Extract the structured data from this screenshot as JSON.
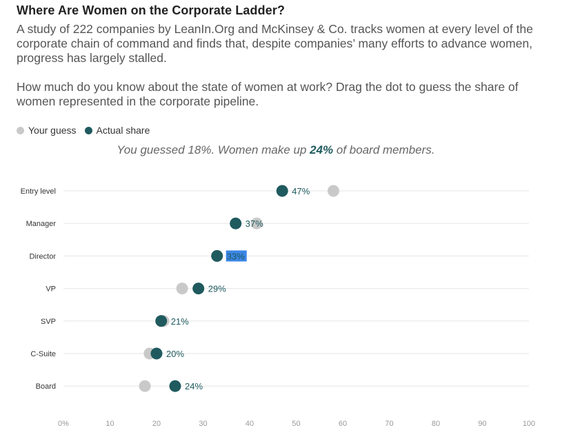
{
  "header": {
    "title": "Where Are Women on the Corporate Ladder?",
    "paragraph_1": "A study of 222 companies by LeanIn.Org and McKinsey & Co. tracks women at every level of the corporate chain of command and finds that, despite companies’ many efforts to advance women, progress has largely stalled.",
    "paragraph_2": "How much do you know about the state of women at work? Drag the dot to guess the share of women represented in the corporate pipeline."
  },
  "legend": {
    "guess_label": "Your guess",
    "actual_label": "Actual share"
  },
  "result": {
    "prefix": "You guessed 18%. Women make up ",
    "highlight": "24%",
    "suffix": " of board members."
  },
  "colors": {
    "actual": "#1f5a5e",
    "guess": "#c9c9c9",
    "gridline": "#e6e6e6",
    "tick_text": "#999999"
  },
  "chart_data": {
    "type": "scatter",
    "categories": [
      "Entry level",
      "Manager",
      "Director",
      "VP",
      "SVP",
      "C-Suite",
      "Board"
    ],
    "series": [
      {
        "name": "Your guess",
        "values": [
          58,
          41.5,
          33,
          25.5,
          21.5,
          18.5,
          17.5
        ]
      },
      {
        "name": "Actual share",
        "values": [
          47,
          37,
          33,
          29,
          21,
          20,
          24
        ]
      }
    ],
    "value_labels": [
      "47%",
      "37%",
      "33%",
      "29%",
      "21%",
      "20%",
      "24%"
    ],
    "highlighted_label_index": 2,
    "xlim": [
      0,
      100
    ],
    "xticks": [
      0,
      10,
      20,
      30,
      40,
      50,
      60,
      70,
      80,
      90,
      100
    ],
    "xtick_labels": [
      "0%",
      "10",
      "20",
      "30",
      "40",
      "50",
      "60",
      "70",
      "80",
      "90",
      "100"
    ],
    "grid": true,
    "legend_position": "top-left"
  }
}
